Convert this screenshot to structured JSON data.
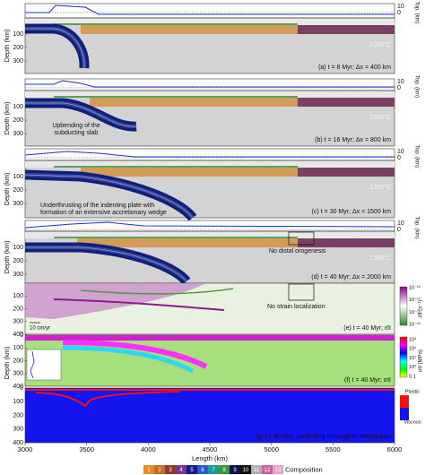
{
  "figure": {
    "panels": [
      {
        "label": "(a) t = 8 Myr; Δx = 400 km",
        "y_axis_title": "Depth (km)",
        "yticks": [
          "100",
          "200",
          "300"
        ],
        "top_ticks": [
          "10",
          "0"
        ],
        "top_axis_title": "Top. (km)",
        "temperature": "1300°C"
      },
      {
        "label": "(b) t = 16 Myr; Δx = 800 km",
        "y_axis_title": "Depth (km)",
        "yticks": [
          "100",
          "200",
          "300"
        ],
        "top_ticks": [
          "10",
          "0"
        ],
        "top_axis_title": "Top. (km)",
        "temperature": "1300°C",
        "annotation": [
          "Upbending of the",
          "subducting slab"
        ]
      },
      {
        "label": "(c) t = 30 Myr; Δx = 1500 km",
        "y_axis_title": "Depth (km)",
        "yticks": [
          "100",
          "200",
          "300"
        ],
        "top_ticks": [
          "10",
          "0"
        ],
        "top_axis_title": "Top. (km)",
        "temperature": "1300°C",
        "annotation": [
          "Underthrusting of the indenting plate with",
          "formation of an extensive accretionary wedge"
        ]
      },
      {
        "label": "(d) t = 40 Myr; Δx = 2000 km",
        "y_axis_title": "Depth (km)",
        "yticks": [
          "100",
          "200",
          "300"
        ],
        "top_ticks": [
          "10",
          "0"
        ],
        "top_axis_title": "Top. (km)",
        "temperature": "1300°C",
        "annotation": [
          "No distal orogenesis"
        ]
      },
      {
        "label": "(e) t = 40 Myr; ε̇II",
        "yticks": [
          "100",
          "200",
          "300",
          "400"
        ],
        "annotation": [
          "No strain localization"
        ],
        "velocity_scale": "10 cm/yr",
        "colorbar": {
          "title": "ε̇II (s⁻¹)",
          "ticks": [
            "10⁻¹³",
            "10⁻¹⁴",
            "10⁻¹⁵",
            "10⁻¹⁶"
          ]
        }
      },
      {
        "label": "(f) t = 40 Myr; σII",
        "yticks": [
          "0",
          "100",
          "200",
          "300",
          "400"
        ],
        "colorbar": {
          "title": "σII (MPa)",
          "ticks": [
            "10³",
            "10²",
            "10¹",
            "10⁰",
            "0.1"
          ]
        }
      },
      {
        "label": "(g) t = 40 Myr; controlling rheological mechanism",
        "yticks": [
          "0",
          "100",
          "200",
          "300",
          "400"
        ],
        "legend": [
          "Plastic",
          "Viscous"
        ]
      }
    ],
    "x_axis": {
      "title": "Length (km)",
      "ticks": [
        "3000",
        "3500",
        "4000",
        "4500",
        "5000",
        "5500",
        "6000"
      ]
    },
    "composition": {
      "title": "Composition",
      "classes": [
        "1",
        "2",
        "3",
        "4",
        "5",
        "6",
        "7",
        "8",
        "9",
        "10",
        "11",
        "12",
        "13"
      ]
    }
  }
}
